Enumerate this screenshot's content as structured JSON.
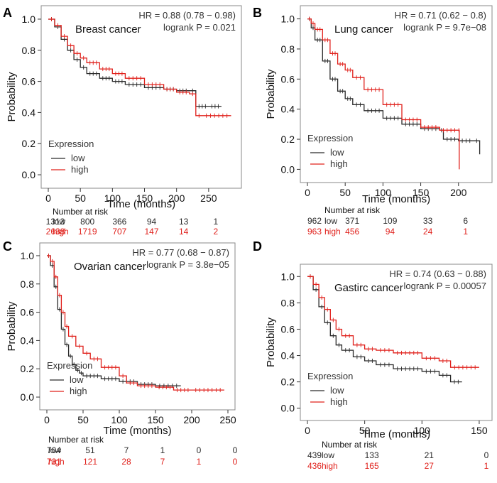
{
  "colors": {
    "low": "#2a2a2a",
    "high": "#e0201b"
  },
  "chart_data": [
    {
      "type": "line",
      "panel_label": "A",
      "title": "Breast cancer",
      "hr_text": "HR = 0.88 (0.78 − 0.98)",
      "p_text": "logrank P = 0.021",
      "xlabel": "Time (months)",
      "ylabel": "Probability",
      "xlim": [
        0,
        290
      ],
      "ylim": [
        -0.05,
        1.05
      ],
      "xticks": [
        0,
        50,
        100,
        150,
        200,
        250
      ],
      "yticks": [
        0.0,
        0.2,
        0.4,
        0.6,
        0.8,
        1.0
      ],
      "legend": {
        "title": "Expression",
        "low": "low",
        "high": "high"
      },
      "series": [
        {
          "name": "low",
          "x": [
            0,
            10,
            20,
            30,
            40,
            50,
            60,
            80,
            100,
            120,
            150,
            180,
            200,
            220,
            230,
            250,
            270
          ],
          "y": [
            1.0,
            0.95,
            0.87,
            0.8,
            0.74,
            0.69,
            0.65,
            0.62,
            0.6,
            0.58,
            0.56,
            0.55,
            0.54,
            0.54,
            0.44,
            0.44,
            0.44
          ]
        },
        {
          "name": "high",
          "x": [
            0,
            10,
            20,
            30,
            40,
            50,
            60,
            80,
            100,
            120,
            150,
            180,
            200,
            220,
            230,
            240,
            285
          ],
          "y": [
            1.0,
            0.96,
            0.89,
            0.83,
            0.78,
            0.75,
            0.72,
            0.68,
            0.65,
            0.62,
            0.58,
            0.55,
            0.53,
            0.52,
            0.38,
            0.38,
            0.38
          ]
        }
      ],
      "risk": {
        "title": "Number at risk",
        "rows": [
          {
            "label": "low",
            "values": [
              "1313",
              "800",
              "366",
              "94",
              "13",
              "1"
            ]
          },
          {
            "label": "high",
            "values": [
              "2638",
              "1719",
              "707",
              "147",
              "14",
              "2"
            ]
          }
        ]
      }
    },
    {
      "type": "line",
      "panel_label": "B",
      "title": "Lung cancer",
      "hr_text": "HR = 0.71 (0.62 − 0.8)",
      "p_text": "logrank P = 9.7e−08",
      "xlabel": "Time (months)",
      "ylabel": "Probability",
      "xlim": [
        0,
        235
      ],
      "ylim": [
        -0.05,
        1.05
      ],
      "xticks": [
        0,
        50,
        100,
        150,
        200
      ],
      "yticks": [
        0.0,
        0.2,
        0.4,
        0.6,
        0.8,
        1.0
      ],
      "legend": {
        "title": "Expression",
        "low": "low",
        "high": "high"
      },
      "series": [
        {
          "name": "low",
          "x": [
            0,
            5,
            10,
            20,
            30,
            40,
            50,
            60,
            75,
            100,
            125,
            150,
            175,
            180,
            200,
            220,
            228
          ],
          "y": [
            1.0,
            0.94,
            0.86,
            0.72,
            0.6,
            0.52,
            0.47,
            0.43,
            0.39,
            0.34,
            0.3,
            0.27,
            0.26,
            0.2,
            0.19,
            0.19,
            0.1
          ]
        },
        {
          "name": "high",
          "x": [
            0,
            5,
            10,
            20,
            30,
            40,
            50,
            60,
            75,
            100,
            125,
            150,
            175,
            200,
            201
          ],
          "y": [
            1.0,
            0.97,
            0.93,
            0.86,
            0.77,
            0.7,
            0.66,
            0.61,
            0.53,
            0.43,
            0.33,
            0.28,
            0.26,
            0.26,
            0.0
          ]
        }
      ],
      "risk": {
        "title": "Number at risk",
        "rows": [
          {
            "label": "low",
            "values": [
              "962",
              "371",
              "109",
              "33",
              "6"
            ]
          },
          {
            "label": "high",
            "values": [
              "963",
              "456",
              "94",
              "24",
              "1"
            ]
          }
        ]
      }
    },
    {
      "type": "line",
      "panel_label": "C",
      "title": "Ovarian cancer",
      "hr_text": "HR = 0.77 (0.68 − 0.87)",
      "p_text": "logrank P = 3.8e−05",
      "xlabel": "Time (months)",
      "ylabel": "Probability",
      "xlim": [
        0,
        250
      ],
      "ylim": [
        -0.05,
        1.05
      ],
      "xticks": [
        0,
        50,
        100,
        150,
        200,
        250
      ],
      "yticks": [
        0.0,
        0.2,
        0.4,
        0.6,
        0.8,
        1.0
      ],
      "legend": {
        "title": "Expression",
        "low": "low",
        "high": "high"
      },
      "series": [
        {
          "name": "low",
          "x": [
            0,
            5,
            10,
            15,
            20,
            25,
            30,
            35,
            40,
            45,
            50,
            75,
            100,
            125,
            150,
            185
          ],
          "y": [
            1.0,
            0.93,
            0.78,
            0.62,
            0.48,
            0.37,
            0.29,
            0.23,
            0.19,
            0.17,
            0.15,
            0.13,
            0.11,
            0.09,
            0.08,
            0.08
          ]
        },
        {
          "name": "high",
          "x": [
            0,
            5,
            10,
            15,
            20,
            25,
            30,
            40,
            50,
            60,
            75,
            100,
            110,
            125,
            150,
            175,
            200,
            245
          ],
          "y": [
            1.0,
            0.96,
            0.85,
            0.72,
            0.6,
            0.5,
            0.43,
            0.36,
            0.31,
            0.27,
            0.21,
            0.15,
            0.1,
            0.08,
            0.07,
            0.05,
            0.05,
            0.05
          ]
        }
      ],
      "risk": {
        "title": "Number at risk",
        "rows": [
          {
            "label": "low",
            "values": [
              "704",
              "51",
              "7",
              "1",
              "0",
              "0"
            ]
          },
          {
            "label": "high",
            "values": [
              "731",
              "121",
              "28",
              "7",
              "1",
              "0"
            ]
          }
        ]
      }
    },
    {
      "type": "line",
      "panel_label": "D",
      "title": "Gastirc cancer",
      "hr_text": "HR = 0.74 (0.63 − 0.88)",
      "p_text": "logrank P = 0.00057",
      "xlabel": "Time (months)",
      "ylabel": "Probability",
      "xlim": [
        0,
        155
      ],
      "ylim": [
        -0.05,
        1.05
      ],
      "xticks": [
        0,
        50,
        100,
        150
      ],
      "yticks": [
        0.0,
        0.2,
        0.4,
        0.6,
        0.8,
        1.0
      ],
      "legend": {
        "title": "Expression",
        "low": "low",
        "high": "high"
      },
      "series": [
        {
          "name": "low",
          "x": [
            0,
            5,
            10,
            15,
            20,
            25,
            30,
            40,
            50,
            60,
            75,
            100,
            115,
            125,
            135
          ],
          "y": [
            1.0,
            0.9,
            0.77,
            0.65,
            0.55,
            0.48,
            0.44,
            0.39,
            0.36,
            0.33,
            0.3,
            0.28,
            0.25,
            0.2,
            0.2
          ]
        },
        {
          "name": "high",
          "x": [
            0,
            5,
            10,
            15,
            20,
            25,
            30,
            40,
            50,
            60,
            75,
            100,
            115,
            125,
            150
          ],
          "y": [
            1.0,
            0.94,
            0.84,
            0.75,
            0.67,
            0.6,
            0.55,
            0.48,
            0.45,
            0.44,
            0.42,
            0.38,
            0.36,
            0.31,
            0.31
          ]
        }
      ],
      "risk": {
        "title": "Number at risk",
        "rows": [
          {
            "label": "low",
            "values": [
              "439",
              "133",
              "21",
              "0"
            ]
          },
          {
            "label": "high",
            "values": [
              "436",
              "165",
              "27",
              "1"
            ]
          }
        ]
      }
    }
  ]
}
